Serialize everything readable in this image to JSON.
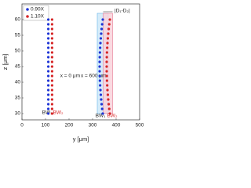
{
  "chart_data": {
    "type": "scatter",
    "xlabel": "y [μm]",
    "ylabel": "z [μm]",
    "xlim": [
      0,
      500
    ],
    "xticks": [
      0,
      100,
      200,
      300,
      400,
      500
    ],
    "ylim": [
      28,
      65
    ],
    "yticks": [
      30,
      35,
      40,
      45,
      50,
      55,
      60
    ],
    "grid": false,
    "legend": "upper left",
    "annotations": [
      "x = 0 μm",
      "x = 600 μm",
      "BW₁",
      "BW₂",
      "BW₁",
      "BW₂",
      "|D₁-D₂|"
    ],
    "series": [
      {
        "name": "0.90X",
        "color": "#1f35d6",
        "x": [
          112,
          112,
          112,
          112,
          112,
          112,
          112,
          112,
          112,
          112,
          112,
          112,
          112,
          112,
          112,
          112,
          112,
          112,
          112,
          112,
          112,
          343.5,
          340.9,
          338.6,
          336.6,
          334.9,
          333.4,
          332.2,
          331.2,
          330.5,
          330.1,
          330,
          330.1,
          330.5,
          331.2,
          332.2,
          333.4,
          334.9,
          336.6,
          338.6,
          340.9,
          343.5
        ],
        "y": [
          30,
          31.5,
          33,
          34.5,
          36,
          37.5,
          39,
          40.5,
          42,
          43.5,
          45,
          46.5,
          48,
          49.5,
          51,
          52.5,
          54,
          55.5,
          57,
          58.5,
          60,
          30,
          31.5,
          33,
          34.5,
          36,
          37.5,
          39,
          40.5,
          42,
          43.5,
          45,
          46.5,
          48,
          49.5,
          51,
          52.5,
          54,
          55.5,
          57,
          58.5,
          60
        ]
      },
      {
        "name": "1.10X",
        "color": "#d62728",
        "x": [
          128,
          128,
          128,
          128,
          128,
          128,
          128,
          128,
          128,
          128,
          128,
          128,
          128,
          128,
          128,
          128,
          128,
          128,
          128,
          128,
          128,
          373.5,
          370.9,
          368.6,
          366.6,
          364.9,
          363.4,
          362.2,
          361.2,
          360.5,
          360.1,
          360,
          360.1,
          360.5,
          361.2,
          362.2,
          363.4,
          364.9,
          366.6,
          368.6,
          370.9,
          373.5
        ],
        "y": [
          30,
          31.5,
          33,
          34.5,
          36,
          37.5,
          39,
          40.5,
          42,
          43.5,
          45,
          46.5,
          48,
          49.5,
          51,
          52.5,
          54,
          55.5,
          57,
          58.5,
          60,
          30,
          31.5,
          33,
          34.5,
          36,
          37.5,
          39,
          40.5,
          42,
          43.5,
          45,
          46.5,
          48,
          49.5,
          51,
          52.5,
          54,
          55.5,
          57,
          58.5,
          60
        ]
      }
    ]
  }
}
